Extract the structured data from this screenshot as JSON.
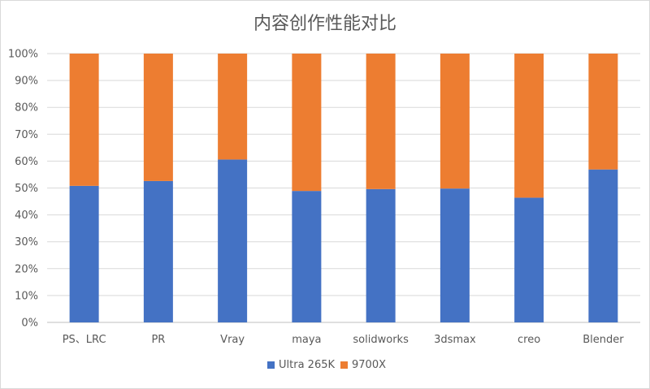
{
  "chart_data": {
    "type": "bar",
    "stacked": "percent",
    "title": "内容创作性能对比",
    "categories": [
      "PS、LRC",
      "PR",
      "Vray",
      "maya",
      "solidworks",
      "3dsmax",
      "creo",
      "Blender"
    ],
    "series": [
      {
        "name": "Ultra 265K",
        "color": "#4472c4",
        "values": [
          50.8,
          52.6,
          60.6,
          48.9,
          49.6,
          49.8,
          46.4,
          56.9
        ]
      },
      {
        "name": "9700X",
        "color": "#ed7d31",
        "values": [
          49.2,
          47.4,
          39.4,
          51.1,
          50.4,
          50.2,
          53.6,
          43.1
        ]
      }
    ],
    "y_ticks": [
      "0%",
      "10%",
      "20%",
      "30%",
      "40%",
      "50%",
      "60%",
      "70%",
      "80%",
      "90%",
      "100%"
    ],
    "ylim": [
      0,
      100
    ],
    "grid": true,
    "legend_position": "bottom"
  }
}
